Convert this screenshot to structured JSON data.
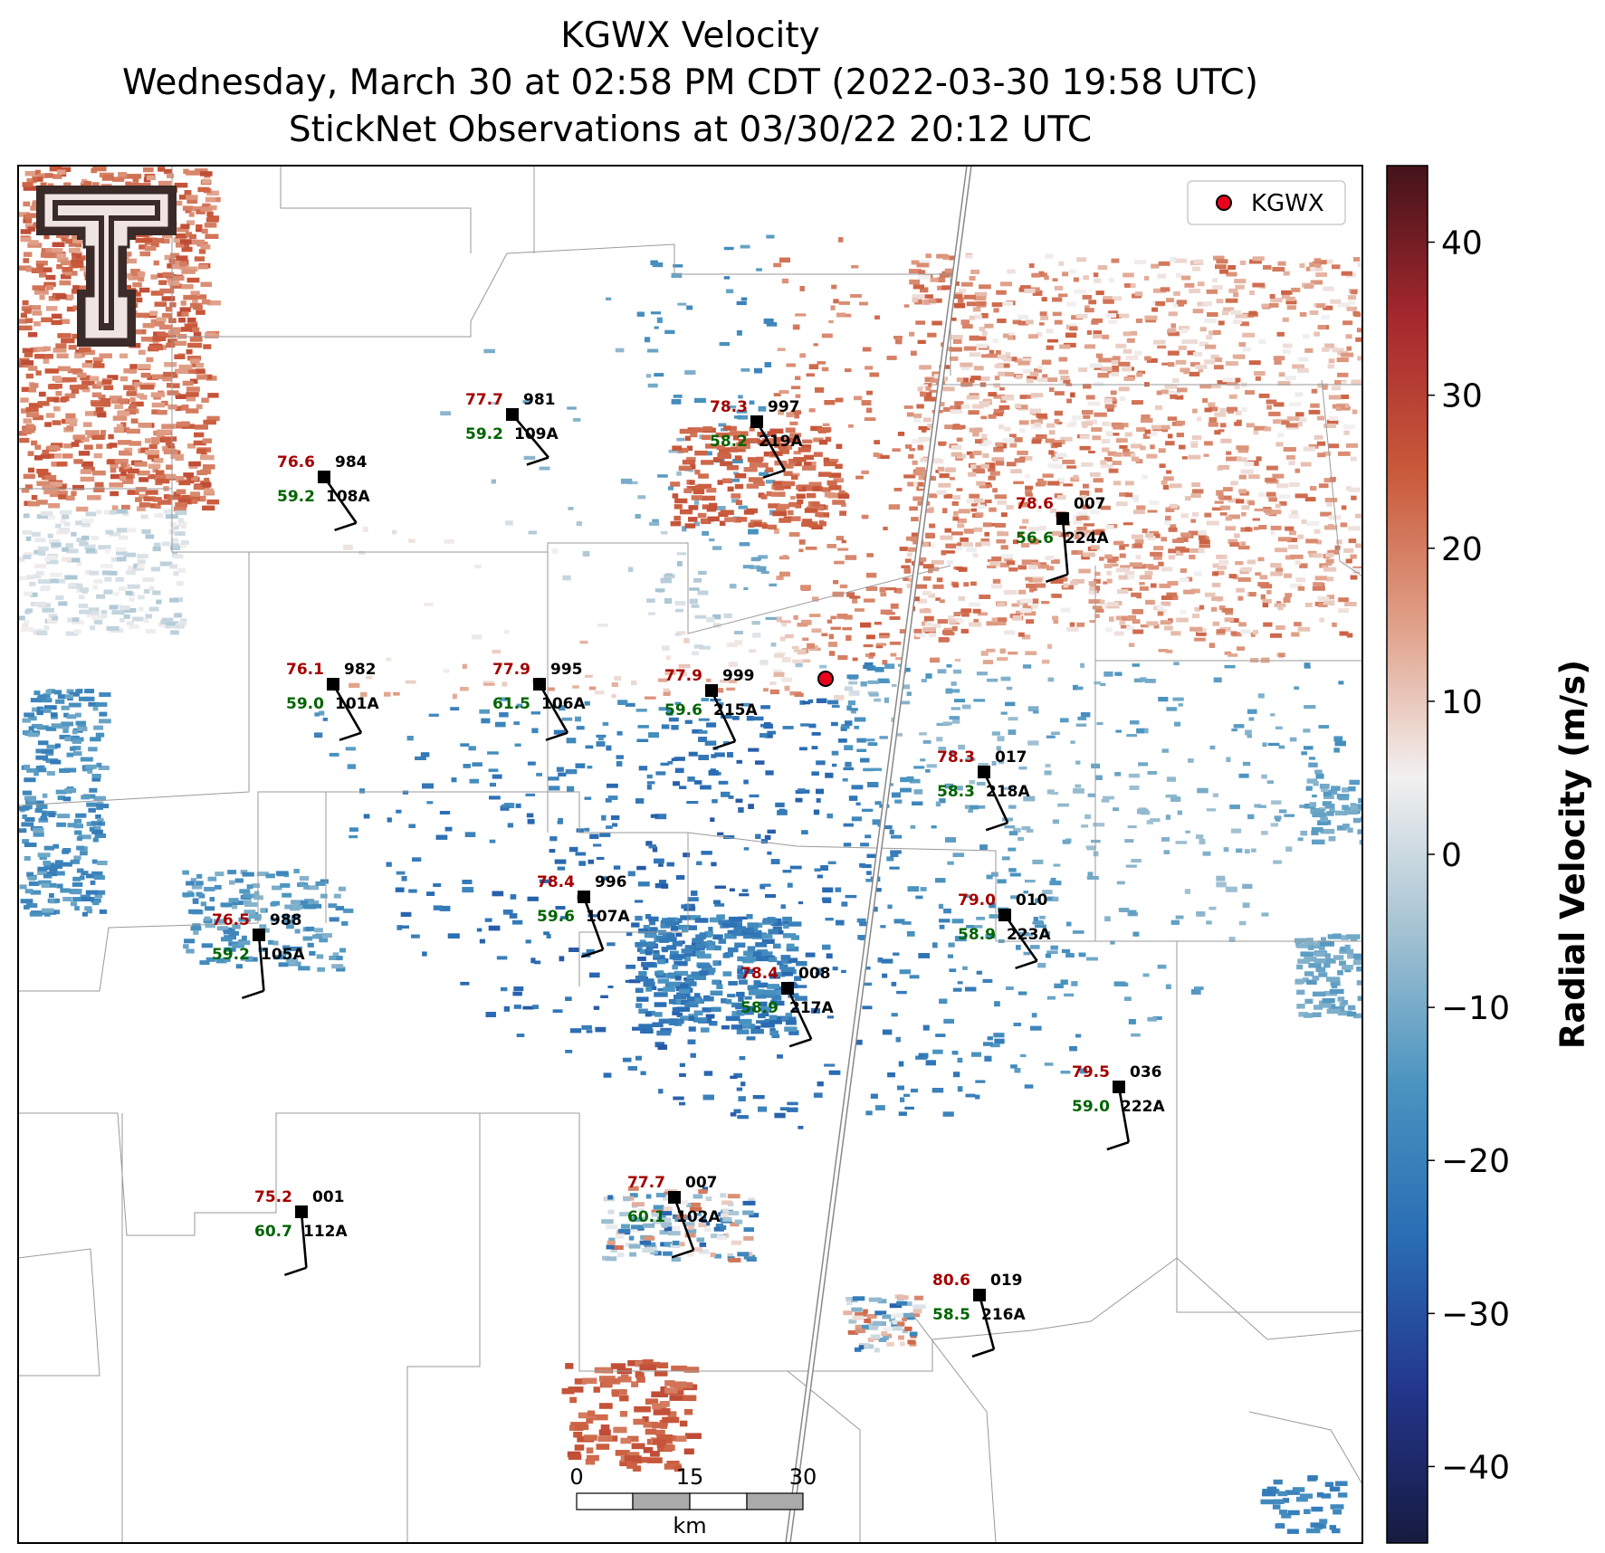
{
  "title": {
    "line1": "KGWX Velocity",
    "line2": "Wednesday, March 30 at 02:58 PM CDT (2022-03-30 19:58 UTC)",
    "line3": "StickNet Observations at 03/30/22 20:12 UTC"
  },
  "legend": {
    "label": "KGWX",
    "marker_color": "#e8001c"
  },
  "colorbar": {
    "label": "Radial Velocity (m/s)",
    "ticks": [
      "40",
      "30",
      "20",
      "10",
      "0",
      "−10",
      "−20",
      "−30",
      "−40"
    ],
    "tick_values": [
      40,
      30,
      20,
      10,
      0,
      -10,
      -20,
      -30,
      -40
    ],
    "range": [
      -45,
      45
    ],
    "colors": [
      "#171b3f",
      "#23368d",
      "#2a6db4",
      "#4a94c0",
      "#a4c2d2",
      "#f2f0f0",
      "#e0a088",
      "#c9593a",
      "#a5282e",
      "#43131a"
    ]
  },
  "scale_bar": {
    "ticks": [
      "0",
      "15",
      "30"
    ],
    "unit": "km"
  },
  "stations": [
    {
      "id": "109A",
      "temp": "77.7",
      "dew": "59.2",
      "pres": "981"
    },
    {
      "id": "219A",
      "temp": "78.3",
      "dew": "58.2",
      "pres": "997"
    },
    {
      "id": "108A",
      "temp": "76.6",
      "dew": "59.2",
      "pres": "984"
    },
    {
      "id": "224A",
      "temp": "78.6",
      "dew": "56.6",
      "pres": "007"
    },
    {
      "id": "101A",
      "temp": "76.1",
      "dew": "59.0",
      "pres": "982"
    },
    {
      "id": "106A",
      "temp": "77.9",
      "dew": "61.5",
      "pres": "995"
    },
    {
      "id": "215A",
      "temp": "77.9",
      "dew": "59.6",
      "pres": "999"
    },
    {
      "id": "218A",
      "temp": "78.3",
      "dew": "58.3",
      "pres": "017"
    },
    {
      "id": "107A",
      "temp": "78.4",
      "dew": "59.6",
      "pres": "996"
    },
    {
      "id": "223A",
      "temp": "79.0",
      "dew": "58.9",
      "pres": "010"
    },
    {
      "id": "105A",
      "temp": "76.5",
      "dew": "59.2",
      "pres": "988"
    },
    {
      "id": "217A",
      "temp": "78.4",
      "dew": "58.9",
      "pres": "008"
    },
    {
      "id": "222A",
      "temp": "79.5",
      "dew": "59.0",
      "pres": "036"
    },
    {
      "id": "102A",
      "temp": "77.7",
      "dew": "60.1",
      "pres": "007"
    },
    {
      "id": "112A",
      "temp": "75.2",
      "dew": "60.7",
      "pres": "001"
    },
    {
      "id": "216A",
      "temp": "80.6",
      "dew": "58.5",
      "pres": "019"
    }
  ],
  "colors": {
    "temp": "#a50000",
    "dew": "#006400",
    "radar_site": "#e8001c",
    "logo_dark": "#3a2a28",
    "logo_light": "#efe4e2"
  }
}
